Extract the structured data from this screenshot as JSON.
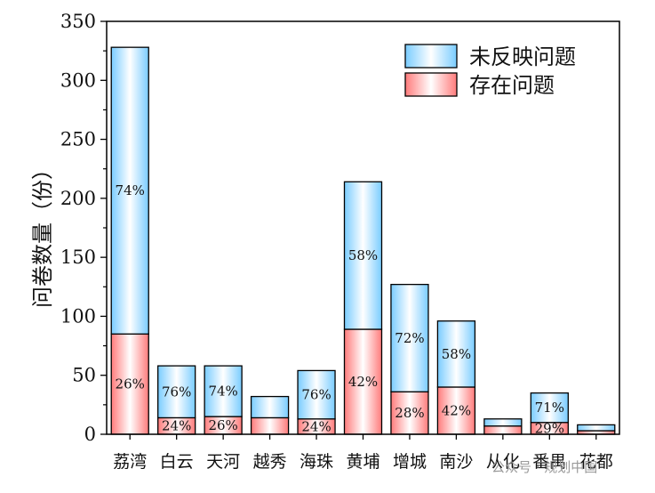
{
  "chart_data": {
    "type": "bar",
    "stacked": true,
    "ylabel": "问卷数量（份）",
    "xlabel": "",
    "ylim": [
      0,
      350
    ],
    "yticks": [
      0,
      50,
      100,
      150,
      200,
      250,
      300,
      350
    ],
    "legend_position": "top-right",
    "categories": [
      "荔湾",
      "白云",
      "天河",
      "越秀",
      "海珠",
      "黄埔",
      "增城",
      "南沙",
      "从化",
      "番禺",
      "花都"
    ],
    "series": [
      {
        "name": "存在问题",
        "color": "#ff8080",
        "values": [
          85,
          14,
          15,
          14,
          13,
          89,
          36,
          40,
          7,
          10,
          3
        ],
        "labels": [
          "26%",
          "24%",
          "26%",
          "",
          "24%",
          "42%",
          "28%",
          "42%",
          "",
          "29%",
          ""
        ]
      },
      {
        "name": "未反映问题",
        "color": "#7fcfff",
        "values": [
          243,
          44,
          43,
          18,
          41,
          125,
          91,
          56,
          6,
          25,
          5
        ],
        "labels": [
          "74%",
          "76%",
          "74%",
          "",
          "76%",
          "58%",
          "72%",
          "58%",
          "",
          "71%",
          ""
        ]
      }
    ]
  },
  "watermark": "公众号 · 规划中国"
}
